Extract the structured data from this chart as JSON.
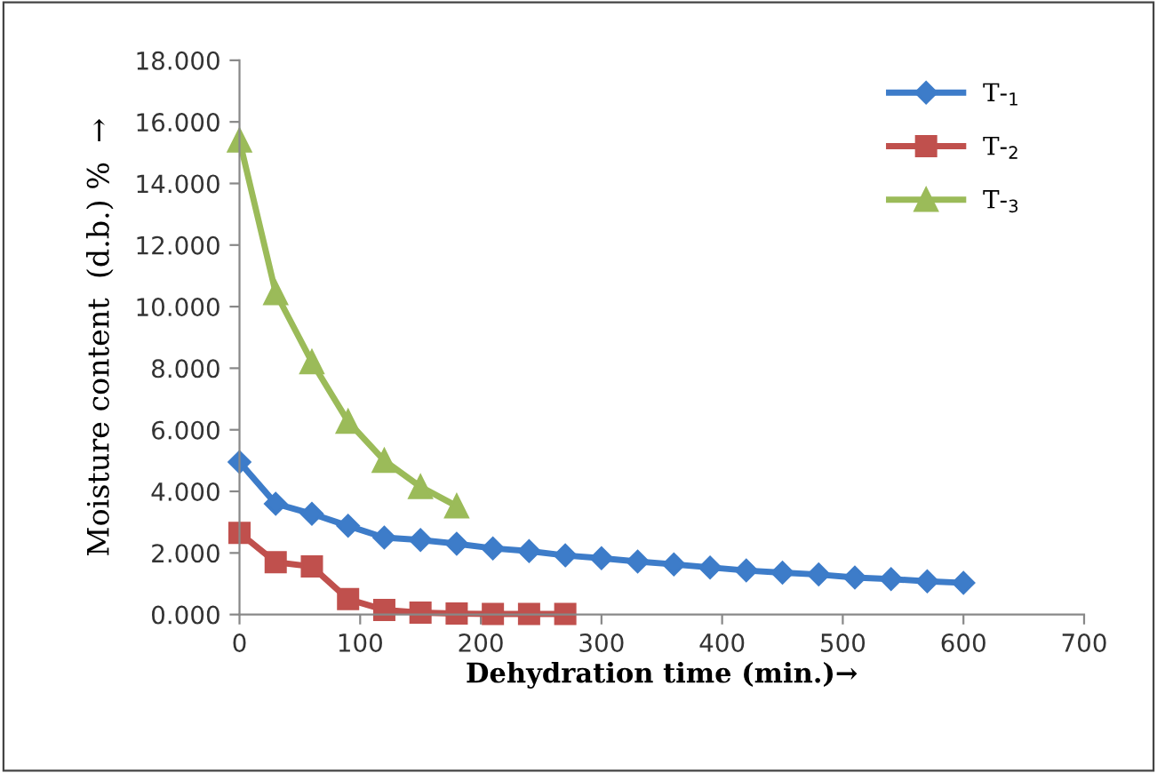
{
  "chart_data": {
    "type": "line",
    "xlabel": "Dehydration time (min.)→",
    "ylabel": "Moisture content  (d.b.) %  →",
    "xlim": [
      0,
      700
    ],
    "xticks": [
      0,
      100,
      200,
      300,
      400,
      500,
      600,
      700
    ],
    "ylim": [
      0,
      18
    ],
    "yticks": [
      {
        "value": 0,
        "label": "0.000"
      },
      {
        "value": 2,
        "label": "2.000"
      },
      {
        "value": 4,
        "label": "4.000"
      },
      {
        "value": 6,
        "label": "6.000"
      },
      {
        "value": 8,
        "label": "8.000"
      },
      {
        "value": 10,
        "label": "10.000"
      },
      {
        "value": 12,
        "label": "12.000"
      },
      {
        "value": 14,
        "label": "14.000"
      },
      {
        "value": 16,
        "label": "16.000"
      },
      {
        "value": 18,
        "label": "18.000"
      }
    ],
    "grid": false,
    "legend": "top right",
    "series": [
      {
        "name": "T-$_{1}$",
        "color": "#3d7cc9",
        "marker": "diamond",
        "x": [
          0,
          30,
          60,
          90,
          120,
          150,
          180,
          210,
          240,
          270,
          300,
          330,
          360,
          390,
          420,
          450,
          480,
          510,
          540,
          570,
          600
        ],
        "values": [
          4.95,
          3.6,
          3.27,
          2.88,
          2.5,
          2.42,
          2.3,
          2.15,
          2.06,
          1.92,
          1.83,
          1.72,
          1.63,
          1.53,
          1.43,
          1.36,
          1.3,
          1.2,
          1.15,
          1.08,
          1.03
        ]
      },
      {
        "name": "T-$_{2}$",
        "color": "#c0504d",
        "marker": "square",
        "x": [
          0,
          30,
          60,
          90,
          120,
          150,
          180,
          210,
          240,
          270
        ],
        "values": [
          2.65,
          1.7,
          1.56,
          0.5,
          0.15,
          0.06,
          0.03,
          0.02,
          0.02,
          0.02
        ]
      },
      {
        "name": "T-$_{3}$",
        "color": "#9bbb59",
        "marker": "triangle",
        "x": [
          0,
          30,
          60,
          90,
          120,
          150,
          180
        ],
        "values": [
          15.4,
          10.45,
          8.2,
          6.27,
          5.0,
          4.15,
          3.52
        ]
      }
    ]
  }
}
